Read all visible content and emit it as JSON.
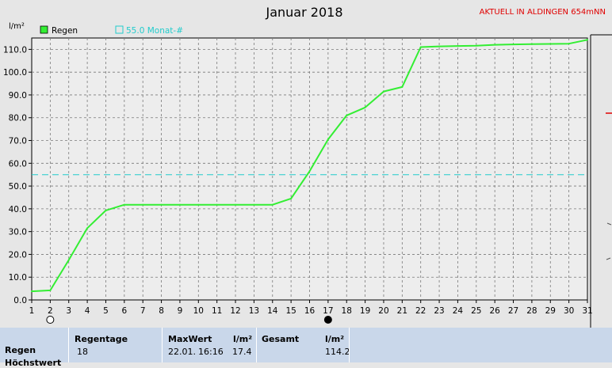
{
  "chart_data": {
    "type": "line",
    "title": "Januar 2018",
    "station": "AKTUELL IN ALDINGEN 654mNN",
    "ylabel": "l/m²",
    "ylim": [
      0,
      115
    ],
    "yticks": [
      "0.0",
      "10.0",
      "20.0",
      "30.0",
      "40.0",
      "50.0",
      "60.0",
      "70.0",
      "80.0",
      "90.0",
      "100.0",
      "110.0"
    ],
    "xlim": [
      1,
      31
    ],
    "xticks": [
      "1",
      "2",
      "3",
      "4",
      "5",
      "6",
      "7",
      "8",
      "9",
      "10",
      "11",
      "12",
      "13",
      "14",
      "15",
      "16",
      "17",
      "18",
      "19",
      "20",
      "21",
      "22",
      "23",
      "24",
      "25",
      "26",
      "27",
      "28",
      "29",
      "30",
      "31"
    ],
    "grid": true,
    "series": [
      {
        "name": "Regen",
        "color": "#33ee33",
        "x": [
          1,
          2,
          3,
          4,
          5,
          6,
          7,
          8,
          9,
          10,
          11,
          12,
          13,
          14,
          15,
          16,
          17,
          18,
          19,
          20,
          21,
          22,
          23,
          24,
          25,
          26,
          27,
          28,
          29,
          30,
          31
        ],
        "y": [
          3.8,
          4.2,
          17.5,
          31.5,
          39.3,
          41.8,
          41.8,
          41.8,
          41.8,
          41.8,
          41.8,
          41.8,
          41.8,
          41.8,
          44.5,
          56.5,
          70.5,
          81.0,
          84.5,
          91.5,
          93.5,
          111.0,
          111.3,
          111.5,
          111.6,
          112.0,
          112.2,
          112.3,
          112.4,
          112.5,
          114.2
        ]
      }
    ],
    "reference": {
      "label": "55.0 Monat-#",
      "value": 55.0,
      "color": "#22cccc"
    },
    "moon_markers": [
      {
        "day": 2,
        "phase": "full-moon"
      },
      {
        "day": 17,
        "phase": "new-moon"
      }
    ]
  },
  "stats": {
    "row_label": "Regen",
    "next_row_label": "Höchstwert",
    "regentage_header": "Regentage",
    "regentage_value": "18",
    "maxwert_header": "MaxWert",
    "maxwert_unit": "l/m²",
    "maxwert_date": "22.01.",
    "maxwert_time": "16:16",
    "maxwert_value": "17.4",
    "gesamt_header": "Gesamt",
    "gesamt_unit": "l/m²",
    "gesamt_value": "114.2"
  },
  "colors": {
    "background": "#e6e6e6",
    "grid": "#7a7a7a",
    "station_text": "#e00000",
    "stats_panel": "#c9d7ea"
  }
}
